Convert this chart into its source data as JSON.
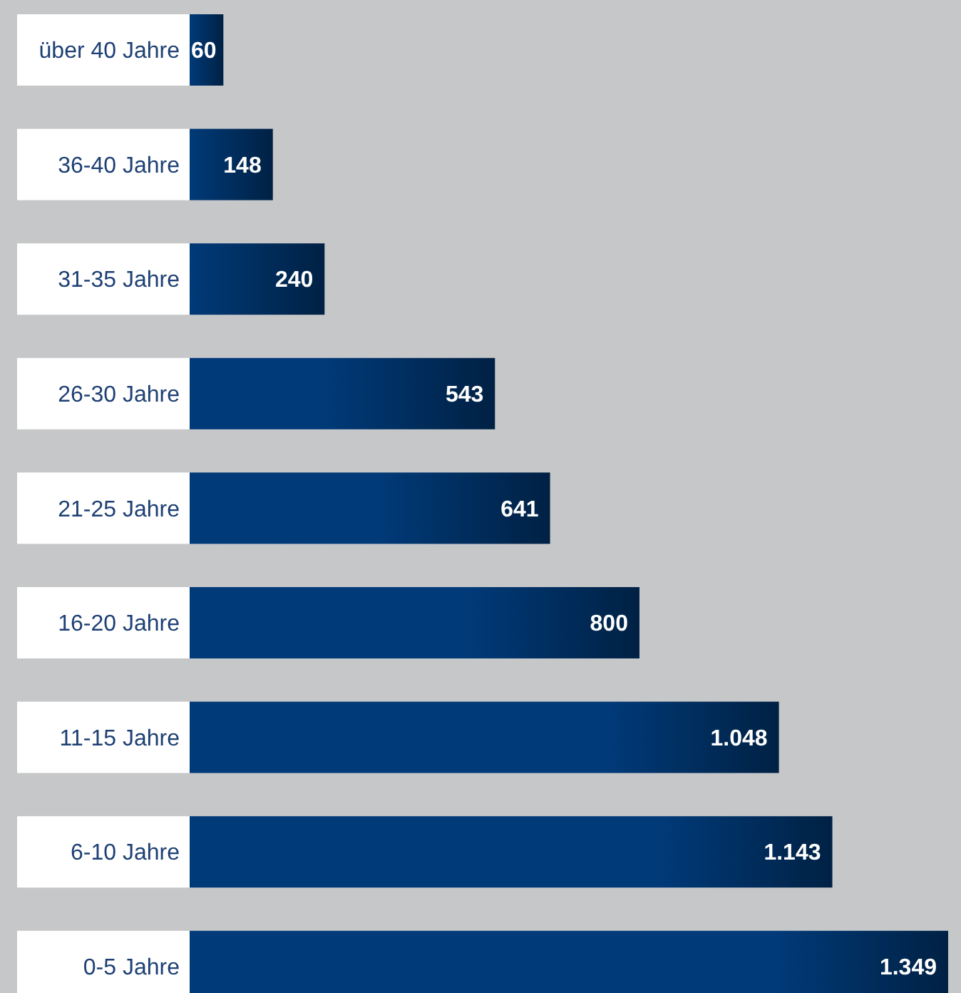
{
  "chart_data": {
    "type": "bar",
    "orientation": "horizontal",
    "categories": [
      "über 40 Jahre",
      "36-40 Jahre",
      "31-35 Jahre",
      "26-30 Jahre",
      "21-25 Jahre",
      "16-20 Jahre",
      "11-15 Jahre",
      "6-10 Jahre",
      "0-5 Jahre"
    ],
    "values": [
      60,
      148,
      240,
      543,
      641,
      800,
      1048,
      1143,
      1349
    ],
    "value_labels": [
      "60",
      "148",
      "240",
      "543",
      "641",
      "800",
      "1.048",
      "1.143",
      "1.349"
    ],
    "color": "#003a78",
    "xlim": [
      0,
      1349
    ],
    "tick_labels": "y"
  }
}
